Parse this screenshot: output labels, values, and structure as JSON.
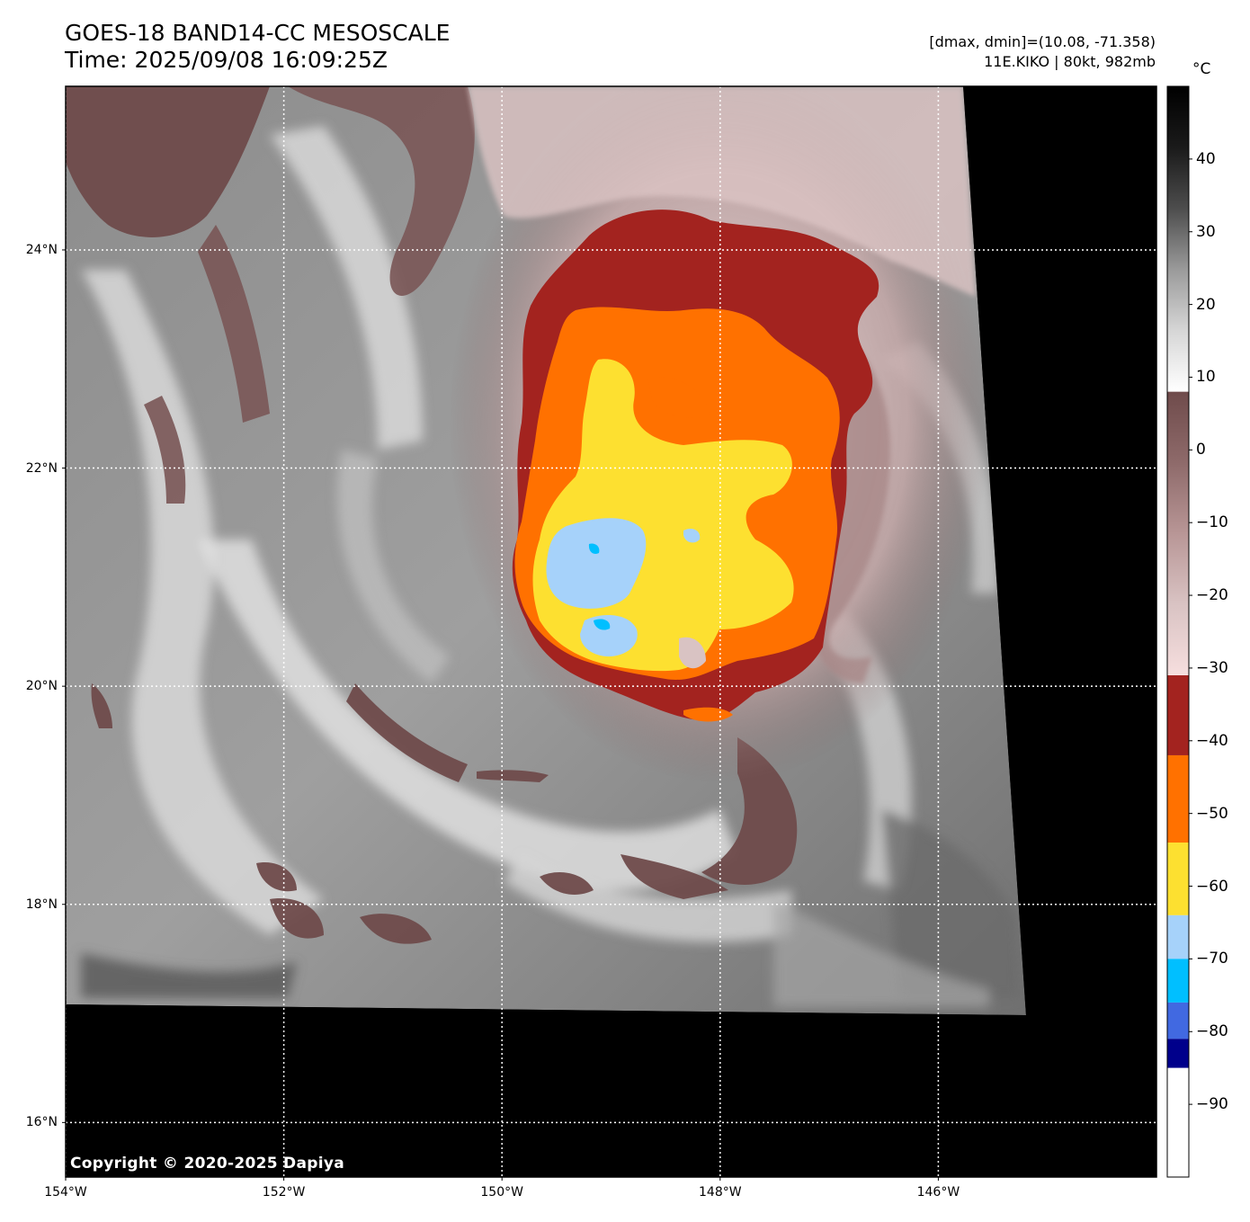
{
  "header": {
    "title": "GOES-18 BAND14-CC MESOSCALE",
    "time": "Time: 2025/09/08 16:09:25Z",
    "range_info": "[dmax, dmin]=(10.08, -71.358)",
    "storm_info": "11E.KIKO | 80kt, 982mb"
  },
  "map": {
    "copyright": "Copyright © 2020-2025 Dapiya",
    "lat_labels": [
      "24°N",
      "22°N",
      "20°N",
      "18°N",
      "16°N"
    ],
    "lon_labels": [
      "154°W",
      "152°W",
      "150°W",
      "148°W",
      "146°W"
    ],
    "lat_values": [
      24,
      22,
      20,
      18,
      16
    ],
    "lon_values": [
      -154,
      -152,
      -150,
      -148,
      -146
    ],
    "extent": {
      "lon_min": -154,
      "lon_max": -144,
      "lat_min": 15.5,
      "lat_max": 25.5
    },
    "no_data_color": "#000000",
    "gridline_color": "#ffffff"
  },
  "colorbar": {
    "unit": "°C",
    "tick_labels": [
      "40",
      "30",
      "20",
      "10",
      "0",
      "−10",
      "−20",
      "−30",
      "−40",
      "−50",
      "−60",
      "−70",
      "−80",
      "−90"
    ],
    "tick_values": [
      40,
      30,
      20,
      10,
      0,
      -10,
      -20,
      -30,
      -40,
      -50,
      -60,
      -70,
      -80,
      -90
    ],
    "range": [
      -100,
      50
    ],
    "segments": [
      {
        "from": 50,
        "to": 8,
        "colors": [
          "#000000",
          "#1a1a1a",
          "#4d4d4d",
          "#9a9a9a",
          "#d6d6d6",
          "#ffffff"
        ]
      },
      {
        "from": 8,
        "to": -31,
        "colors": [
          "#6f4b4b",
          "#8e6a6a",
          "#b89696",
          "#d9c3c3",
          "#f6dede"
        ]
      },
      {
        "from": -31,
        "to": -42,
        "colors": [
          "#a3231f"
        ]
      },
      {
        "from": -42,
        "to": -54,
        "colors": [
          "#ff7100"
        ]
      },
      {
        "from": -54,
        "to": -64,
        "colors": [
          "#fde030"
        ]
      },
      {
        "from": -64,
        "to": -70,
        "colors": [
          "#a6d2fa"
        ]
      },
      {
        "from": -70,
        "to": -76,
        "colors": [
          "#00bfff"
        ]
      },
      {
        "from": -76,
        "to": -81,
        "colors": [
          "#4169e1"
        ]
      },
      {
        "from": -81,
        "to": -85,
        "colors": [
          "#00008b"
        ]
      },
      {
        "from": -85,
        "to": -100,
        "colors": [
          "#ffffff"
        ]
      }
    ]
  }
}
